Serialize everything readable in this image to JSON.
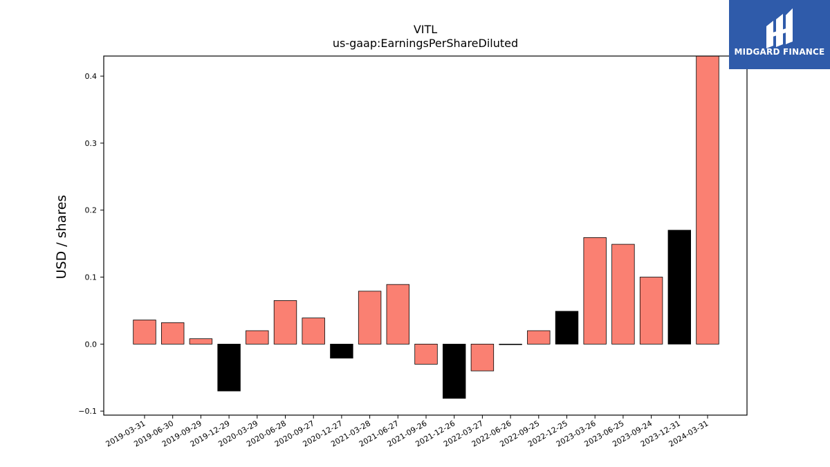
{
  "chart_data": {
    "type": "bar",
    "title": "VITL",
    "subtitle": "us-gaap:EarningsPerShareDiluted",
    "xlabel": "",
    "ylabel": "USD / shares",
    "ylim": [
      -0.106,
      0.43
    ],
    "yticks": [
      -0.1,
      0.0,
      0.1,
      0.2,
      0.3,
      0.4
    ],
    "ytick_labels": [
      "−0.1",
      "0.0",
      "0.1",
      "0.2",
      "0.3",
      "0.4"
    ],
    "grid": false,
    "categories": [
      "2019-03-31",
      "2019-06-30",
      "2019-09-29",
      "2019-12-29",
      "2020-03-29",
      "2020-06-28",
      "2020-09-27",
      "2020-12-27",
      "2021-03-28",
      "2021-06-27",
      "2021-09-26",
      "2021-12-26",
      "2022-03-27",
      "2022-06-26",
      "2022-09-25",
      "2022-12-25",
      "2023-03-26",
      "2023-06-25",
      "2023-09-24",
      "2023-12-31",
      "2024-03-31"
    ],
    "values": [
      0.036,
      0.032,
      0.008,
      -0.07,
      0.02,
      0.065,
      0.039,
      -0.021,
      0.079,
      0.089,
      -0.03,
      -0.081,
      -0.04,
      0.0,
      0.02,
      0.049,
      0.159,
      0.149,
      0.1,
      0.17,
      0.43
    ],
    "bar_colors": [
      "#fa8072",
      "#fa8072",
      "#fa8072",
      "#000000",
      "#fa8072",
      "#fa8072",
      "#fa8072",
      "#000000",
      "#fa8072",
      "#fa8072",
      "#fa8072",
      "#000000",
      "#fa8072",
      "#000000",
      "#fa8072",
      "#000000",
      "#fa8072",
      "#fa8072",
      "#fa8072",
      "#000000",
      "#fa8072"
    ]
  },
  "logo": {
    "text": "MIDGARD FINANCE",
    "color": "#2f5baa"
  }
}
